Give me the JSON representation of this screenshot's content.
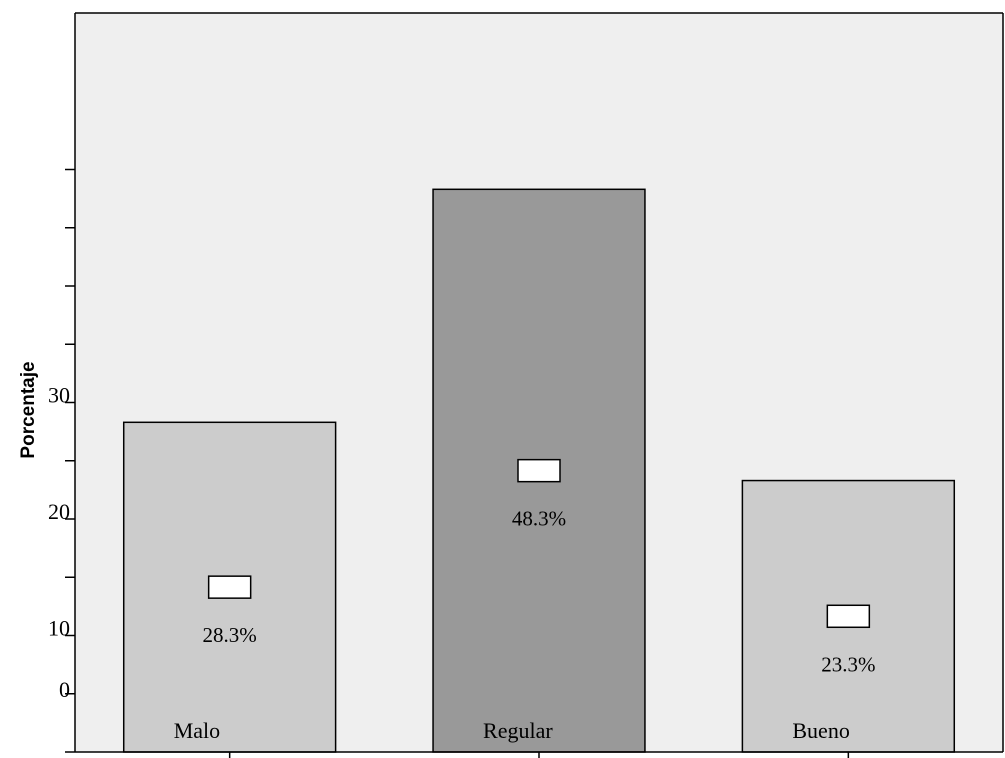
{
  "chart_data": {
    "type": "bar",
    "categories": [
      "Malo",
      "Regular",
      "Bueno"
    ],
    "values": [
      28.3,
      48.3,
      23.3
    ],
    "data_labels": [
      "28.3%",
      "48.3%",
      "23.3%"
    ],
    "ylabel": "Porcentaje",
    "yticks": [
      "0",
      "10",
      "20",
      "30"
    ],
    "ylim": [
      0,
      50
    ],
    "grid": false,
    "colors": {
      "background": "#efefef",
      "bar": "#cccccc",
      "bar_highlight": "#999999",
      "axis": "#000000"
    },
    "highlight_index": 1
  }
}
